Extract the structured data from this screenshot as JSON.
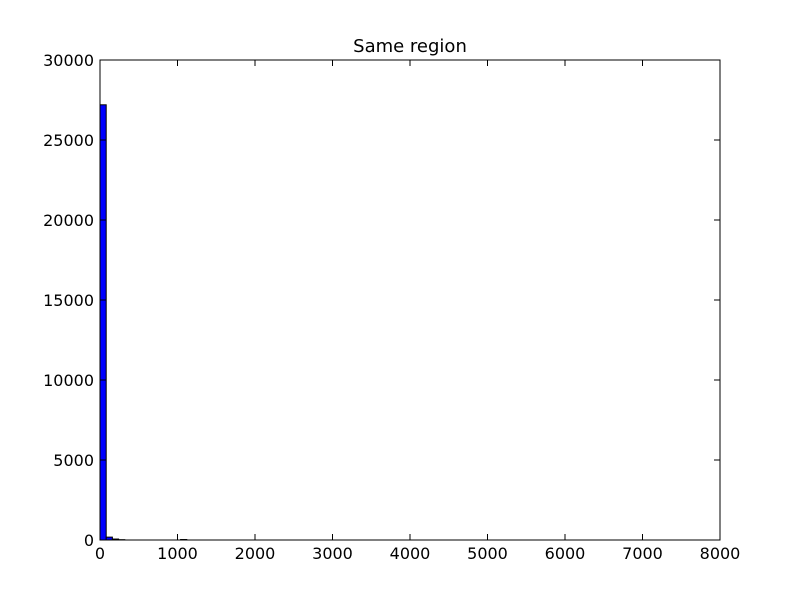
{
  "chart_data": {
    "type": "bar",
    "title": "Same region",
    "xlabel": "",
    "ylabel": "",
    "xlim": [
      0,
      8000
    ],
    "ylim": [
      0,
      30000
    ],
    "xticks": [
      "0",
      "1000",
      "2000",
      "3000",
      "4000",
      "5000",
      "6000",
      "7000",
      "8000"
    ],
    "yticks": [
      "0",
      "5000",
      "10000",
      "15000",
      "20000",
      "25000",
      "30000"
    ],
    "grid": false,
    "bar_color": "#0000ff",
    "bins": [
      {
        "x0": 0,
        "x1": 80,
        "count": 27200
      },
      {
        "x0": 80,
        "x1": 160,
        "count": 180
      },
      {
        "x0": 160,
        "x1": 240,
        "count": 60
      },
      {
        "x0": 240,
        "x1": 320,
        "count": 20
      },
      {
        "x0": 1040,
        "x1": 1120,
        "count": 30
      }
    ]
  }
}
